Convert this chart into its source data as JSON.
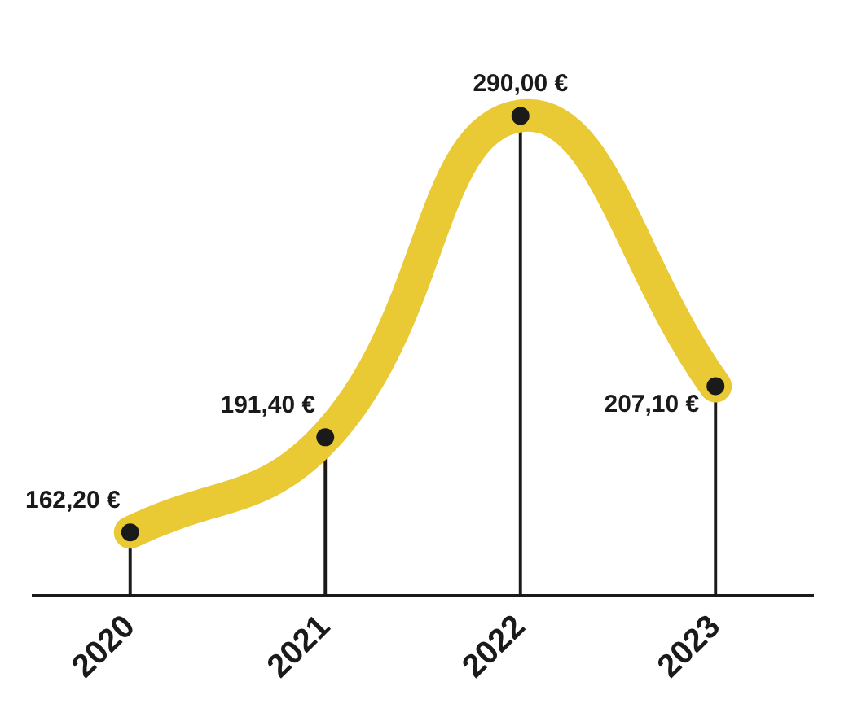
{
  "chart_data": {
    "type": "lollipop",
    "categories": [
      "2020",
      "2021",
      "2022",
      "2023"
    ],
    "series": [
      {
        "type": "line",
        "color": "#e9c934",
        "values": [
          162.2,
          191.4,
          290.0,
          207.1
        ]
      },
      {
        "type": "lollipop",
        "color": "#1a1a1a",
        "values": [
          162.2,
          191.4,
          290.0,
          207.1
        ],
        "value_labels": [
          "162,20 €",
          "191,40 €",
          "290,00 €",
          "207,10 €"
        ]
      }
    ],
    "legend": false,
    "grid": false
  }
}
